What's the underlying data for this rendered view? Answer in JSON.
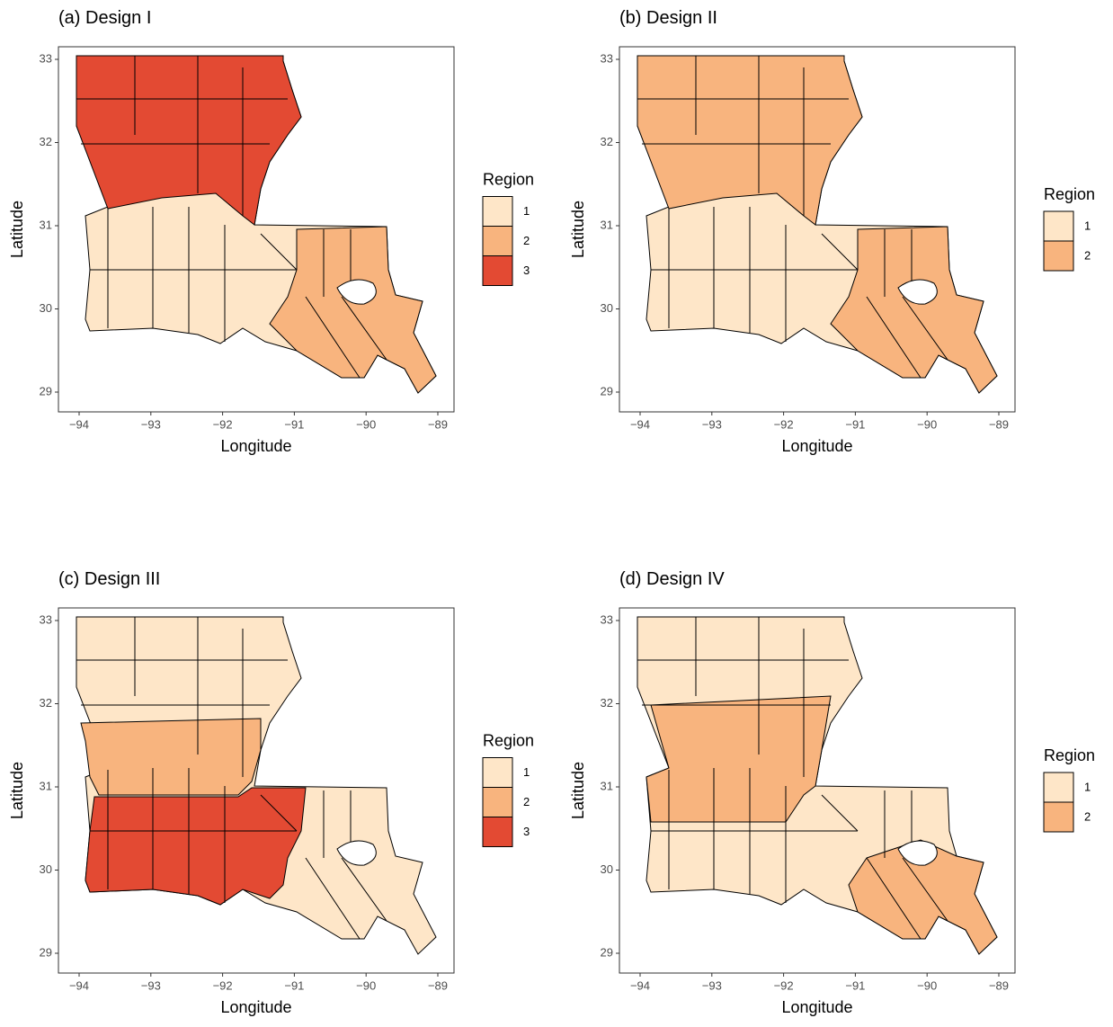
{
  "panels": [
    {
      "title": "(a) Design I",
      "xlabel": "Longitude",
      "ylabel": "Latitude",
      "xticks": [
        {
          "value": -94,
          "label": "−94"
        },
        {
          "value": -93,
          "label": "−93"
        },
        {
          "value": -92,
          "label": "−92"
        },
        {
          "value": -91,
          "label": "−91"
        },
        {
          "value": -90,
          "label": "−90"
        },
        {
          "value": -89,
          "label": "−89"
        }
      ],
      "yticks": [
        29,
        30,
        31,
        32,
        33
      ],
      "legend": {
        "title": "Region",
        "items": [
          {
            "label": "1",
            "color": "#fee6c8"
          },
          {
            "label": "2",
            "color": "#f8b47e"
          },
          {
            "label": "3",
            "color": "#e34a33"
          }
        ]
      }
    },
    {
      "title": "(b) Design II",
      "xlabel": "Longitude",
      "ylabel": "Latitude",
      "xticks": [
        {
          "value": -94,
          "label": "−94"
        },
        {
          "value": -93,
          "label": "−93"
        },
        {
          "value": -92,
          "label": "−92"
        },
        {
          "value": -91,
          "label": "−91"
        },
        {
          "value": -90,
          "label": "−90"
        },
        {
          "value": -89,
          "label": "−89"
        }
      ],
      "yticks": [
        29,
        30,
        31,
        32,
        33
      ],
      "legend": {
        "title": "Region",
        "items": [
          {
            "label": "1",
            "color": "#fee6c8"
          },
          {
            "label": "2",
            "color": "#f8b47e"
          }
        ]
      }
    },
    {
      "title": "(c) Design III",
      "xlabel": "Longitude",
      "ylabel": "Latitude",
      "xticks": [
        {
          "value": -94,
          "label": "−94"
        },
        {
          "value": -93,
          "label": "−93"
        },
        {
          "value": -92,
          "label": "−92"
        },
        {
          "value": -91,
          "label": "−91"
        },
        {
          "value": -90,
          "label": "−90"
        },
        {
          "value": -89,
          "label": "−89"
        }
      ],
      "yticks": [
        29,
        30,
        31,
        32,
        33
      ],
      "legend": {
        "title": "Region",
        "items": [
          {
            "label": "1",
            "color": "#fee6c8"
          },
          {
            "label": "2",
            "color": "#f8b47e"
          },
          {
            "label": "3",
            "color": "#e34a33"
          }
        ]
      }
    },
    {
      "title": "(d) Design IV",
      "xlabel": "Longitude",
      "ylabel": "Latitude",
      "xticks": [
        {
          "value": -94,
          "label": "−94"
        },
        {
          "value": -93,
          "label": "−93"
        },
        {
          "value": -92,
          "label": "−92"
        },
        {
          "value": -91,
          "label": "−91"
        },
        {
          "value": -90,
          "label": "−90"
        },
        {
          "value": -89,
          "label": "−89"
        }
      ],
      "yticks": [
        29,
        30,
        31,
        32,
        33
      ],
      "legend": {
        "title": "Region",
        "items": [
          {
            "label": "1",
            "color": "#fee6c8"
          },
          {
            "label": "2",
            "color": "#f8b47e"
          }
        ]
      }
    }
  ]
}
